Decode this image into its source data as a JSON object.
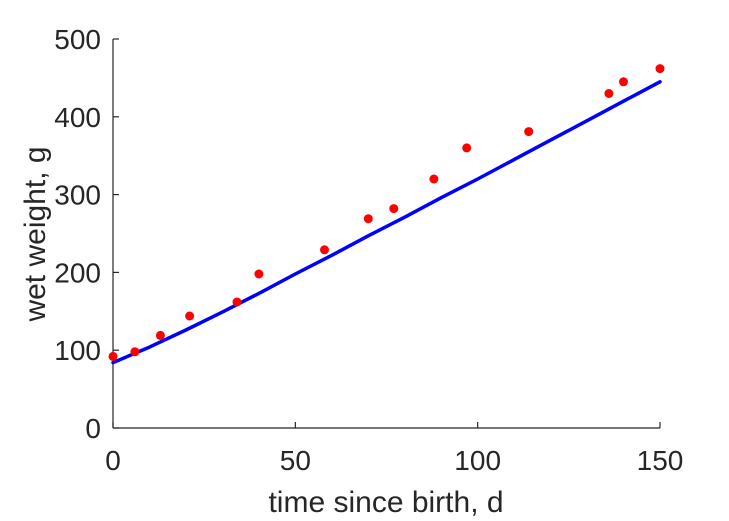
{
  "chart_data": {
    "type": "scatter",
    "title": "",
    "xlabel": "time since birth, d",
    "ylabel": "wet weight, g",
    "xlim": [
      0,
      150
    ],
    "ylim": [
      0,
      500
    ],
    "xticks": [
      0,
      50,
      100,
      150
    ],
    "yticks": [
      0,
      100,
      200,
      300,
      400,
      500
    ],
    "grid": false,
    "legend": "none",
    "series": [
      {
        "kind": "scatter",
        "color": "#ff0000",
        "x": [
          0,
          6,
          13,
          21,
          34,
          40,
          58,
          70,
          77,
          88,
          97,
          114,
          136,
          140,
          150
        ],
        "y": [
          92,
          98,
          119,
          144,
          162,
          198,
          229,
          269,
          282,
          320,
          360,
          381,
          430,
          445,
          462
        ]
      },
      {
        "kind": "line",
        "color": "#0000ff",
        "x": [
          0,
          10,
          20,
          30,
          40,
          50,
          60,
          70,
          80,
          90,
          100,
          110,
          120,
          130,
          140,
          150
        ],
        "y": [
          84,
          104,
          126,
          149,
          173,
          198,
          222,
          247,
          271,
          296,
          320,
          345,
          370,
          395,
          420,
          445
        ]
      }
    ]
  }
}
